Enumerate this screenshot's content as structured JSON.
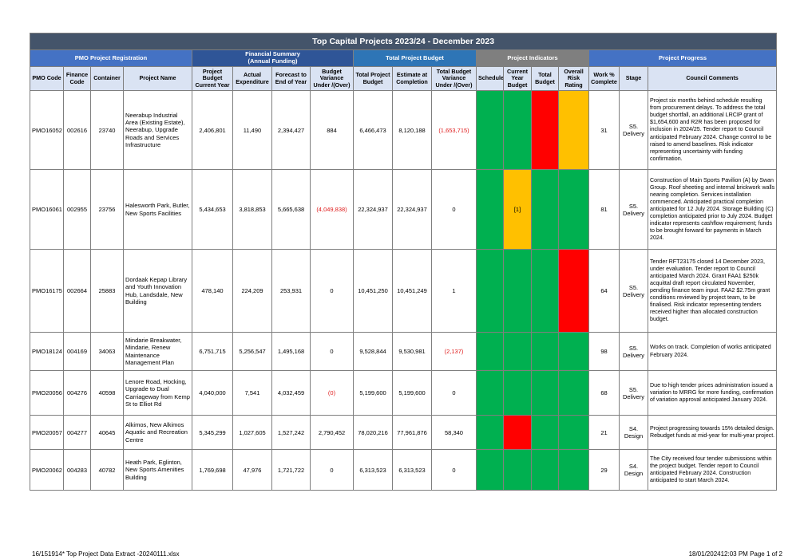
{
  "title": "Top Capital Projects 2023/24 - December 2023",
  "groups": {
    "registration": "PMO Project Registration",
    "financial_line1": "Financial Summary",
    "financial_line2": "(Annual Funding)",
    "budget": "Total Project Budget",
    "indicators": "Project Indicators",
    "progress": "Project Progress"
  },
  "columns": {
    "pmo_code": "PMO Code",
    "finance_code": "Finance Code",
    "container": "Container",
    "project_name": "Project Name",
    "project_budget": "Project Budget Current Year",
    "actual": "Actual Expenditure",
    "forecast": "Forecast to End of Year",
    "budget_variance": "Budget Variance Under /(Over)",
    "total_budget": "Total Project Budget",
    "estimate": "Estimate at Completion",
    "total_variance": "Total Budget Variance Under /(Over)",
    "schedule": "Schedule",
    "current_year_budget": "Current Year Budget",
    "total_budget_ind": "Total Budget",
    "overall_risk": "Overall Risk Rating",
    "work_pct": "Work % Complete",
    "stage": "Stage",
    "comments": "Council Comments"
  },
  "indicator_colors": {
    "green": "#00b050",
    "red": "#ff0000",
    "amber": "#ffc000"
  },
  "rows": [
    {
      "pmo": "PMO16052",
      "finance": "002616",
      "container": "23740",
      "name": "Neerabup Industrial Area (Existing Estate), Neerabup, Upgrade Roads and Services Infrastructure",
      "budget": "2,406,801",
      "actual": "11,490",
      "forecast": "2,394,427",
      "variance": "884",
      "total_budget": "6,466,473",
      "estimate": "8,120,188",
      "total_variance": "(1,653,715)",
      "schedule": "green",
      "cy_budget": "green",
      "cy_budget_label": "",
      "total_budget_ind": "red",
      "risk": "amber",
      "work": "31",
      "stage": "S5. Delivery",
      "comments": "Project six months behind schedule resulting from procurement delays. To address the total budget shortfall, an additional LRCIP grant of $1,654,600 and R2R has been proposed for inclusion in 2024/25. Tender report to Council anticipated February 2024. Change control to be raised to amend baselines. Risk indicator representing uncertainty with funding confirmation."
    },
    {
      "pmo": "PMO16061",
      "finance": "002955",
      "container": "23756",
      "name": "Halesworth Park, Butler, New Sports Facilities",
      "budget": "5,434,653",
      "actual": "3,818,853",
      "forecast": "5,665,638",
      "variance": "(4,049,838)",
      "total_budget": "22,324,937",
      "estimate": "22,324,937",
      "total_variance": "0",
      "schedule": "green",
      "cy_budget": "amber",
      "cy_budget_label": "[1]",
      "total_budget_ind": "green",
      "risk": "green",
      "work": "81",
      "stage": "S5. Delivery",
      "comments": "Construction of Main Sports Pavilion (A) by Swan Group. Roof sheeting and internal brickwork walls nearing completion. Services installation commenced. Anticipated practical completion anticipated for 12 July 2024. Storage Building (C) completion anticipated prior to July 2024. Budget indicator represents cashflow requirement; funds to be brought forward for payments in March 2024."
    },
    {
      "pmo": "PMO16175",
      "finance": "002664",
      "container": "25883",
      "name": "Dordaak Kepap Library and Youth Innovation Hub, Landsdale, New Building",
      "budget": "478,140",
      "actual": "224,209",
      "forecast": "253,931",
      "variance": "0",
      "total_budget": "10,451,250",
      "estimate": "10,451,249",
      "total_variance": "1",
      "schedule": "green",
      "cy_budget": "green",
      "cy_budget_label": "",
      "total_budget_ind": "green",
      "risk": "red",
      "work": "64",
      "stage": "S5. Delivery",
      "comments": "Tender RFT23175 closed 14 December 2023, under evaluation. Tender report to Council anticipated March 2024. Grant FAA1 $250k acquittal draft report circulated November, pending finance team input. FAA2 $2.75m grant conditions reviewed by project team, to be finalised. Risk indicator representing tenders received higher than allocated construction budget."
    },
    {
      "pmo": "PMO18124",
      "finance": "004169",
      "container": "34063",
      "name": "Mindarie Breakwater, Mindarie, Renew Maintenance Management Plan",
      "budget": "6,751,715",
      "actual": "5,256,547",
      "forecast": "1,495,168",
      "variance": "0",
      "total_budget": "9,528,844",
      "estimate": "9,530,981",
      "total_variance": "(2,137)",
      "schedule": "green",
      "cy_budget": "green",
      "cy_budget_label": "",
      "total_budget_ind": "green",
      "risk": "green",
      "work": "98",
      "stage": "S5. Delivery",
      "comments": "Works on track. Completion of works anticipated February 2024."
    },
    {
      "pmo": "PMO20056",
      "finance": "004276",
      "container": "40598",
      "name": "Lenore Road, Hocking, Upgrade to Dual Carriageway from Kemp St to Elliot Rd",
      "budget": "4,040,000",
      "actual": "7,541",
      "forecast": "4,032,459",
      "variance": "(0)",
      "total_budget": "5,199,600",
      "estimate": "5,199,600",
      "total_variance": "0",
      "schedule": "green",
      "cy_budget": "green",
      "cy_budget_label": "",
      "total_budget_ind": "green",
      "risk": "green",
      "work": "68",
      "stage": "S5. Delivery",
      "comments": "Due to high tender prices administration issued a variation to MRRG for more funding, confirmation of variation approval anticipated January 2024."
    },
    {
      "pmo": "PMO20057",
      "finance": "004277",
      "container": "40645",
      "name": "Alkimos, New Alkimos Aquatic and Recreation Centre",
      "budget": "5,345,299",
      "actual": "1,027,605",
      "forecast": "1,527,242",
      "variance": "2,790,452",
      "total_budget": "78,020,216",
      "estimate": "77,961,876",
      "total_variance": "58,340",
      "schedule": "green",
      "cy_budget": "red",
      "cy_budget_label": "",
      "total_budget_ind": "green",
      "risk": "green",
      "work": "21",
      "stage": "S4. Design",
      "comments": "Project progressing towards 15% detailed design. Rebudget funds at mid-year for multi-year project."
    },
    {
      "pmo": "PMO20062",
      "finance": "004283",
      "container": "40782",
      "name": "Heath Park, Eglinton, New Sports Amenities Building",
      "budget": "1,769,698",
      "actual": "47,976",
      "forecast": "1,721,722",
      "variance": "0",
      "total_budget": "6,313,523",
      "estimate": "6,313,523",
      "total_variance": "0",
      "schedule": "green",
      "cy_budget": "green",
      "cy_budget_label": "",
      "total_budget_ind": "green",
      "risk": "green",
      "work": "29",
      "stage": "S4. Design",
      "comments": "The City received four tender submissions within the project budget. Tender report to Council anticipated February 2024. Construction anticipated to start March 2024."
    }
  ],
  "footer": {
    "left": "16/151914*  Top Project Data Extract -20240111.xlsx",
    "right": "18/01/202412:03 PM    Page 1 of 2"
  }
}
